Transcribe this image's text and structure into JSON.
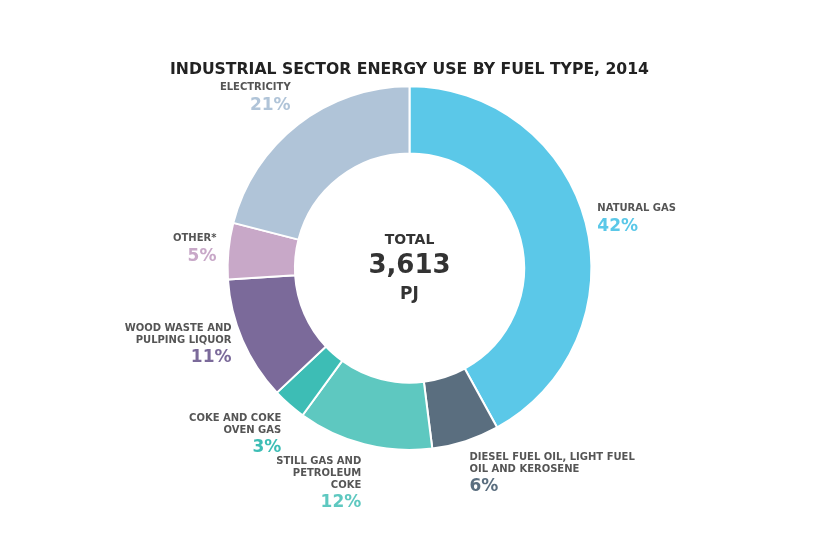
{
  "chart_data": {
    "type": "doughnut",
    "title": "INDUSTRIAL SECTOR ENERGY USE BY FUEL TYPE, 2014",
    "annotations": [
      "TOTAL",
      "3,613",
      "PJ"
    ],
    "categories": [
      "NATURAL GAS",
      "DIESEL FUEL OIL, LIGHT FUEL\nOIL AND KEROSENE",
      "STILL GAS AND\nPETROLEUM\nCOKE",
      "COKE AND COKE\nOVEN GAS",
      "WOOD WASTE AND\nPULPING LIQUOR",
      "OTHER*",
      "ELECTRICITY"
    ],
    "values": [
      42,
      6,
      12,
      3,
      11,
      5,
      21
    ],
    "value_labels": [
      "42%",
      "6%",
      "12%",
      "3%",
      "11%",
      "5%",
      "21%"
    ],
    "colors": [
      "#5BC8E8",
      "#5A6E7F",
      "#5EC8C0",
      "#3DBDB5",
      "#7B6A9A",
      "#C8A8C8",
      "#B0C4D8"
    ],
    "data_labels": true
  }
}
